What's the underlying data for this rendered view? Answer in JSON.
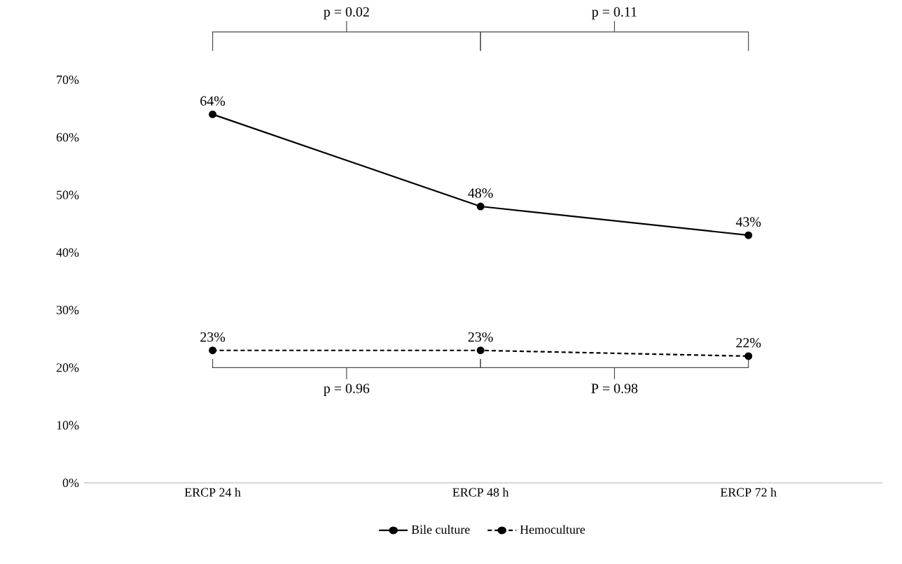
{
  "chart_data": {
    "type": "line",
    "categories": [
      "ERCP 24 h",
      "ERCP 48 h",
      "ERCP 72 h"
    ],
    "series": [
      {
        "name": "Bile culture",
        "color": "#000000",
        "values": [
          64,
          48,
          43
        ],
        "value_labels": [
          "64%",
          "48%",
          "43%"
        ],
        "line_style": "solid"
      },
      {
        "name": "Hemoculture",
        "color": "#000000",
        "values": [
          23,
          23,
          22
        ],
        "value_labels": [
          "23%",
          "23%",
          "22%"
        ],
        "line_style": "dashed"
      }
    ],
    "ylim": [
      0,
      70
    ],
    "yticks": [
      {
        "value": 0,
        "label": "0%"
      },
      {
        "value": 10,
        "label": "10%"
      },
      {
        "value": 20,
        "label": "20%"
      },
      {
        "value": 30,
        "label": "30%"
      },
      {
        "value": 40,
        "label": "40%"
      },
      {
        "value": 50,
        "label": "50%"
      },
      {
        "value": 60,
        "label": "60%"
      },
      {
        "value": 70,
        "label": "70%"
      }
    ],
    "marker": "circle",
    "legend": "bottom",
    "grid": false,
    "annotations": [
      "p = 0.02",
      "p = 0.11",
      "p = 0.96",
      "P = 0.98"
    ]
  }
}
